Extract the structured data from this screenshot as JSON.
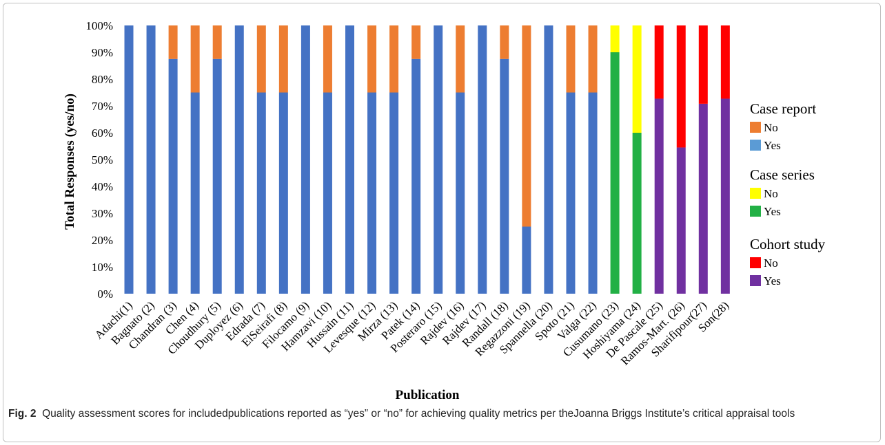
{
  "caption": {
    "label": "Fig. 2",
    "text": "Quality assessment scores for includedpublications reported as “yes” or “no” for achieving quality metrics per theJoanna Briggs Institute’s critical appraisal tools"
  },
  "chart_data": {
    "type": "bar",
    "stacked": true,
    "xlabel": "Publication",
    "ylabel": "Total Responses (yes/no)",
    "ylim": [
      0,
      100
    ],
    "yticks": [
      "0%",
      "10%",
      "20%",
      "30%",
      "40%",
      "50%",
      "60%",
      "70%",
      "80%",
      "90%",
      "100%"
    ],
    "categories": [
      "Adachi(1)",
      "Bagnato (2)",
      "Chandran (3)",
      "Chen (4)",
      "Choudhury (5)",
      "Duployez (6)",
      "Edrada (7)",
      "ElSeirafi (8)",
      "Filocamo (9)",
      "Hamzavi (10)",
      "Hussain (11)",
      "Levesque (12)",
      "Mirza (13)",
      "Patek (14)",
      "Posteraro (15)",
      "Rajdev (16)",
      "Rajdev (17)",
      "Randall (18)",
      "Regazzoni (19)",
      "Spannella (20)",
      "Spoto (21)",
      "Valga (22)",
      "Cusumano (23)",
      "Hoshiyama (24)",
      "De Pascale (25)",
      "Ramos-Mart. (26)",
      "Sharifipour(27)",
      "Son(28)"
    ],
    "groups": [
      "case_report",
      "case_report",
      "case_report",
      "case_report",
      "case_report",
      "case_report",
      "case_report",
      "case_report",
      "case_report",
      "case_report",
      "case_report",
      "case_report",
      "case_report",
      "case_report",
      "case_report",
      "case_report",
      "case_report",
      "case_report",
      "case_report",
      "case_report",
      "case_report",
      "case_report",
      "case_series",
      "case_series",
      "cohort_study",
      "cohort_study",
      "cohort_study",
      "cohort_study"
    ],
    "series": [
      {
        "name": "Yes",
        "values": [
          100,
          100,
          87.5,
          75,
          87.5,
          100,
          75,
          75,
          100,
          75,
          100,
          75,
          75,
          87.5,
          100,
          75,
          100,
          87.5,
          25,
          100,
          75,
          75,
          90,
          60,
          72.7,
          54.5,
          70.8,
          72.7
        ]
      },
      {
        "name": "No",
        "values": [
          0,
          0,
          12.5,
          25,
          12.5,
          0,
          25,
          25,
          0,
          25,
          0,
          25,
          25,
          12.5,
          0,
          25,
          0,
          12.5,
          75,
          0,
          25,
          25,
          10,
          40,
          27.3,
          45.5,
          29.2,
          27.3
        ]
      }
    ],
    "colors": {
      "case_report": {
        "No": "#ED7D31",
        "Yes": "#4472C4"
      },
      "case_series": {
        "No": "#FFFF00",
        "Yes": "#22B045"
      },
      "cohort_study": {
        "No": "#FF0000",
        "Yes": "#7030A0"
      }
    },
    "legend": {
      "placement": "right",
      "groups": [
        {
          "title": "Case report",
          "items": [
            {
              "label": "No",
              "color": "#ED7D31"
            },
            {
              "label": "Yes",
              "color": "#5B9BD5"
            }
          ]
        },
        {
          "title": "Case series",
          "items": [
            {
              "label": "No",
              "color": "#FFFF00"
            },
            {
              "label": "Yes",
              "color": "#22B045"
            }
          ]
        },
        {
          "title": "Cohort study",
          "items": [
            {
              "label": "No",
              "color": "#FF0000"
            },
            {
              "label": "Yes",
              "color": "#7030A0"
            }
          ]
        }
      ]
    },
    "grid": false
  }
}
